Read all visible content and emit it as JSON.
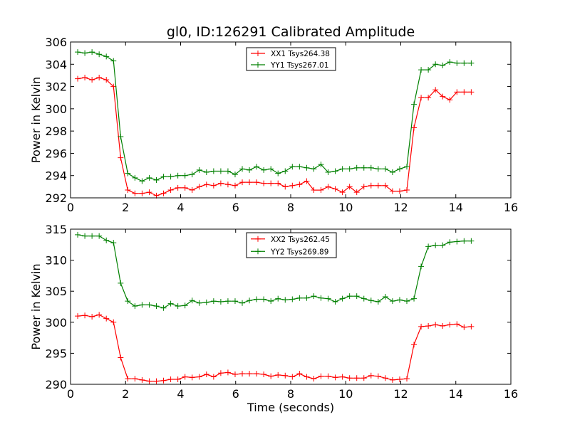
{
  "chart_data": [
    {
      "type": "line",
      "title": "gl0, ID:126291 Calibrated Amplitude",
      "xlabel": "",
      "ylabel": "Power in Kelvin",
      "xlim": [
        0,
        16
      ],
      "ylim": [
        292,
        306
      ],
      "xticks": [
        "0",
        "2",
        "4",
        "6",
        "8",
        "10",
        "12",
        "14",
        "16"
      ],
      "yticks": [
        "292",
        "294",
        "296",
        "298",
        "300",
        "302",
        "304",
        "306"
      ],
      "legend_position": "top-center",
      "x": [
        0.26,
        0.52,
        0.78,
        1.04,
        1.3,
        1.56,
        1.82,
        2.08,
        2.34,
        2.6,
        2.86,
        3.12,
        3.38,
        3.64,
        3.9,
        4.16,
        4.42,
        4.68,
        4.94,
        5.2,
        5.46,
        5.72,
        5.98,
        6.24,
        6.5,
        6.76,
        7.02,
        7.28,
        7.54,
        7.8,
        8.06,
        8.32,
        8.58,
        8.84,
        9.1,
        9.36,
        9.62,
        9.88,
        10.14,
        10.4,
        10.66,
        10.92,
        11.18,
        11.44,
        11.7,
        11.96,
        12.22,
        12.48,
        12.74,
        13.0,
        13.26,
        13.52,
        13.78,
        14.04,
        14.3,
        14.56
      ],
      "series": [
        {
          "name": "XX1 Tsys264.38",
          "color": "#ff0000",
          "values": [
            302.7,
            302.8,
            302.6,
            302.8,
            302.6,
            302.0,
            295.6,
            292.7,
            292.4,
            292.4,
            292.5,
            292.2,
            292.4,
            292.7,
            292.9,
            292.9,
            292.7,
            293.0,
            293.2,
            293.1,
            293.3,
            293.2,
            293.1,
            293.4,
            293.4,
            293.4,
            293.3,
            293.3,
            293.3,
            293.0,
            293.1,
            293.2,
            293.5,
            292.7,
            292.7,
            293.0,
            292.8,
            292.5,
            293.0,
            292.5,
            293.0,
            293.1,
            293.1,
            293.1,
            292.6,
            292.6,
            292.7,
            298.3,
            301.0,
            301.0,
            301.7,
            301.1,
            300.8,
            301.5,
            301.5,
            301.5
          ]
        },
        {
          "name": "YY1 Tsys267.01",
          "color": "#008000",
          "values": [
            305.1,
            305.0,
            305.1,
            304.9,
            304.7,
            304.3,
            297.5,
            294.2,
            293.8,
            293.5,
            293.8,
            293.6,
            293.9,
            293.9,
            294.0,
            294.0,
            294.1,
            294.5,
            294.3,
            294.4,
            294.4,
            294.4,
            294.1,
            294.6,
            294.5,
            294.8,
            294.5,
            294.6,
            294.2,
            294.4,
            294.8,
            294.8,
            294.7,
            294.6,
            295.0,
            294.3,
            294.4,
            294.6,
            294.6,
            294.7,
            294.7,
            294.7,
            294.6,
            294.6,
            294.3,
            294.6,
            294.8,
            300.4,
            303.5,
            303.5,
            304.0,
            303.9,
            304.2,
            304.1,
            304.1,
            304.1
          ]
        }
      ]
    },
    {
      "type": "line",
      "title": "",
      "xlabel": "Time (seconds)",
      "ylabel": "Power in Kelvin",
      "xlim": [
        0,
        16
      ],
      "ylim": [
        290,
        315
      ],
      "xticks": [
        "0",
        "2",
        "4",
        "6",
        "8",
        "10",
        "12",
        "14",
        "16"
      ],
      "yticks": [
        "290",
        "295",
        "300",
        "305",
        "310",
        "315"
      ],
      "legend_position": "top-center",
      "x": [
        0.26,
        0.52,
        0.78,
        1.04,
        1.3,
        1.56,
        1.82,
        2.08,
        2.34,
        2.6,
        2.86,
        3.12,
        3.38,
        3.64,
        3.9,
        4.16,
        4.42,
        4.68,
        4.94,
        5.2,
        5.46,
        5.72,
        5.98,
        6.24,
        6.5,
        6.76,
        7.02,
        7.28,
        7.54,
        7.8,
        8.06,
        8.32,
        8.58,
        8.84,
        9.1,
        9.36,
        9.62,
        9.88,
        10.14,
        10.4,
        10.66,
        10.92,
        11.18,
        11.44,
        11.7,
        11.96,
        12.22,
        12.48,
        12.74,
        13.0,
        13.26,
        13.52,
        13.78,
        14.04,
        14.3,
        14.56
      ],
      "series": [
        {
          "name": "XX2 Tsys262.45",
          "color": "#ff0000",
          "values": [
            301.0,
            301.1,
            300.9,
            301.2,
            300.6,
            300.0,
            294.3,
            290.9,
            290.9,
            290.7,
            290.5,
            290.5,
            290.6,
            290.8,
            290.8,
            291.2,
            291.1,
            291.2,
            291.6,
            291.2,
            291.8,
            291.9,
            291.6,
            291.7,
            291.7,
            291.7,
            291.6,
            291.3,
            291.5,
            291.4,
            291.2,
            291.7,
            291.2,
            290.9,
            291.3,
            291.3,
            291.1,
            291.2,
            291.0,
            291.0,
            291.0,
            291.4,
            291.3,
            291.0,
            290.7,
            290.8,
            290.9,
            296.4,
            299.3,
            299.4,
            299.6,
            299.4,
            299.6,
            299.7,
            299.2,
            299.3
          ]
        },
        {
          "name": "YY2 Tsys269.89",
          "color": "#008000",
          "values": [
            314.1,
            313.9,
            313.9,
            313.9,
            313.2,
            312.8,
            306.3,
            303.4,
            302.6,
            302.8,
            302.8,
            302.6,
            302.3,
            303.0,
            302.6,
            302.7,
            303.5,
            303.1,
            303.2,
            303.4,
            303.3,
            303.4,
            303.4,
            303.1,
            303.5,
            303.7,
            303.7,
            303.4,
            303.8,
            303.6,
            303.7,
            303.9,
            303.9,
            304.2,
            303.9,
            303.8,
            303.3,
            303.8,
            304.2,
            304.2,
            303.8,
            303.5,
            303.3,
            304.1,
            303.4,
            303.6,
            303.4,
            303.8,
            309.0,
            312.2,
            312.4,
            312.4,
            312.9,
            313.0,
            313.1,
            313.1
          ]
        }
      ]
    }
  ]
}
